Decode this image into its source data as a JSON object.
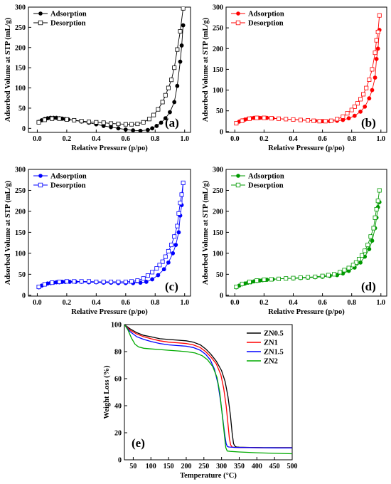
{
  "chart_data": [
    {
      "type": "line",
      "panel_label": "(a)",
      "xlabel": "Relative Pressure (p/po)",
      "ylabel": "Adsorbed Volume at STP (mL/g)",
      "xlim": [
        -0.06,
        1.04
      ],
      "ylim": [
        -10,
        300
      ],
      "xticks": [
        "0.0",
        "0.2",
        "0.4",
        "0.6",
        "0.8",
        "1.0"
      ],
      "xtick_values": [
        0,
        0.2,
        0.4,
        0.6,
        0.8,
        1.0
      ],
      "yticks": [
        "0",
        "50",
        "100",
        "150",
        "200",
        "250",
        "300"
      ],
      "ytick_values": [
        0,
        50,
        100,
        150,
        200,
        250,
        300
      ],
      "legend": [
        "Adsorption",
        "Desorption"
      ],
      "legend_position": "top-left",
      "color": "#000000",
      "series": [
        {
          "name": "Adsorption",
          "marker": "filled-circle",
          "x": [
            0.01,
            0.03,
            0.05,
            0.07,
            0.09,
            0.11,
            0.13,
            0.15,
            0.17,
            0.19,
            0.21,
            0.25,
            0.3,
            0.35,
            0.4,
            0.45,
            0.5,
            0.55,
            0.6,
            0.65,
            0.7,
            0.75,
            0.78,
            0.81,
            0.84,
            0.87,
            0.9,
            0.93,
            0.95,
            0.97,
            0.98,
            0.99
          ],
          "y": [
            16,
            20,
            23,
            25,
            26,
            26,
            26,
            25,
            24,
            23,
            22,
            20,
            17,
            14,
            10,
            6,
            3,
            0,
            -3,
            -5,
            -6,
            -4,
            0,
            6,
            14,
            25,
            40,
            65,
            105,
            165,
            205,
            255
          ]
        },
        {
          "name": "Desorption",
          "marker": "open-square",
          "x": [
            0.99,
            0.97,
            0.95,
            0.93,
            0.91,
            0.89,
            0.87,
            0.85,
            0.82,
            0.79,
            0.76,
            0.72,
            0.68,
            0.64,
            0.6,
            0.55,
            0.5,
            0.45,
            0.4,
            0.35,
            0.3,
            0.25,
            0.2,
            0.15,
            0.1,
            0.05,
            0.01
          ],
          "y": [
            297,
            240,
            195,
            150,
            120,
            100,
            82,
            65,
            47,
            33,
            23,
            15,
            11,
            10,
            10,
            11,
            12,
            14,
            15,
            16,
            18,
            20,
            22,
            24,
            24,
            21,
            15
          ]
        }
      ]
    },
    {
      "type": "line",
      "panel_label": "(b)",
      "xlabel": "Relative Pressure (p/po)",
      "ylabel": "Adsorbed Volume at STP (mL/g)",
      "xlim": [
        -0.06,
        1.04
      ],
      "ylim": [
        -2,
        300
      ],
      "xticks": [
        "0.0",
        "0.2",
        "0.4",
        "0.6",
        "0.8",
        "1.0"
      ],
      "xtick_values": [
        0,
        0.2,
        0.4,
        0.6,
        0.8,
        1.0
      ],
      "yticks": [
        "0",
        "50",
        "100",
        "150",
        "200",
        "250",
        "300"
      ],
      "ytick_values": [
        0,
        50,
        100,
        150,
        200,
        250,
        300
      ],
      "legend": [
        "Adsorption",
        "Desorption"
      ],
      "legend_position": "top-left",
      "color": "#ff0000",
      "series": [
        {
          "name": "Adsorption",
          "marker": "filled-circle",
          "x": [
            0.01,
            0.03,
            0.05,
            0.07,
            0.09,
            0.11,
            0.13,
            0.15,
            0.17,
            0.19,
            0.22,
            0.26,
            0.3,
            0.35,
            0.4,
            0.45,
            0.5,
            0.55,
            0.6,
            0.65,
            0.7,
            0.74,
            0.78,
            0.82,
            0.86,
            0.89,
            0.92,
            0.94,
            0.96,
            0.97,
            0.98,
            0.99
          ],
          "y": [
            20,
            24,
            27,
            29,
            31,
            32,
            33,
            33,
            33,
            33,
            33,
            32,
            31,
            30,
            29,
            28,
            27,
            26,
            25,
            25,
            26,
            28,
            32,
            38,
            48,
            60,
            80,
            100,
            130,
            175,
            200,
            245
          ]
        },
        {
          "name": "Desorption",
          "marker": "open-square",
          "x": [
            0.99,
            0.98,
            0.97,
            0.96,
            0.94,
            0.92,
            0.9,
            0.88,
            0.86,
            0.84,
            0.82,
            0.8,
            0.77,
            0.74,
            0.7,
            0.66,
            0.62,
            0.58,
            0.54,
            0.5,
            0.45,
            0.4,
            0.35,
            0.3,
            0.25,
            0.2,
            0.15,
            0.1,
            0.05,
            0.01
          ],
          "y": [
            280,
            240,
            220,
            190,
            150,
            125,
            105,
            90,
            78,
            68,
            60,
            52,
            44,
            36,
            30,
            26,
            25,
            25,
            26,
            27,
            28,
            29,
            30,
            31,
            32,
            33,
            33,
            31,
            26,
            20
          ]
        }
      ]
    },
    {
      "type": "line",
      "panel_label": "(c)",
      "xlabel": "Relative Pressure (p/po)",
      "ylabel": "Adsorbed Volume at STP (mL/g)",
      "xlim": [
        -0.06,
        1.04
      ],
      "ylim": [
        -2,
        300
      ],
      "xticks": [
        "0.0",
        "0.2",
        "0.4",
        "0.6",
        "0.8",
        "1.0"
      ],
      "xtick_values": [
        0,
        0.2,
        0.4,
        0.6,
        0.8,
        1.0
      ],
      "yticks": [
        "0",
        "50",
        "100",
        "150",
        "200",
        "250",
        "300"
      ],
      "ytick_values": [
        0,
        50,
        100,
        150,
        200,
        250,
        300
      ],
      "legend": [
        "Adsorption",
        "Desorption"
      ],
      "legend_position": "top-left",
      "color": "#0000ff",
      "series": [
        {
          "name": "Adsorption",
          "marker": "filled-circle",
          "x": [
            0.01,
            0.03,
            0.05,
            0.07,
            0.09,
            0.11,
            0.13,
            0.15,
            0.17,
            0.19,
            0.22,
            0.26,
            0.3,
            0.35,
            0.4,
            0.45,
            0.5,
            0.55,
            0.6,
            0.65,
            0.7,
            0.74,
            0.78,
            0.82,
            0.86,
            0.89,
            0.92,
            0.94,
            0.96,
            0.97,
            0.98,
            0.99
          ],
          "y": [
            19,
            23,
            26,
            28,
            29,
            30,
            31,
            31,
            32,
            32,
            32,
            32,
            32,
            31,
            31,
            30,
            30,
            29,
            29,
            29,
            30,
            32,
            38,
            48,
            62,
            78,
            100,
            120,
            150,
            190,
            215,
            268
          ]
        },
        {
          "name": "Desorption",
          "marker": "open-square",
          "x": [
            0.99,
            0.98,
            0.97,
            0.96,
            0.95,
            0.93,
            0.91,
            0.89,
            0.87,
            0.85,
            0.83,
            0.81,
            0.78,
            0.75,
            0.72,
            0.68,
            0.64,
            0.6,
            0.55,
            0.5,
            0.45,
            0.4,
            0.35,
            0.3,
            0.25,
            0.2,
            0.15,
            0.1,
            0.05,
            0.01
          ],
          "y": [
            268,
            240,
            220,
            195,
            165,
            140,
            120,
            105,
            92,
            80,
            72,
            64,
            55,
            47,
            40,
            35,
            33,
            32,
            32,
            32,
            32,
            32,
            33,
            33,
            33,
            33,
            32,
            30,
            26,
            20
          ]
        }
      ]
    },
    {
      "type": "line",
      "panel_label": "(d)",
      "xlabel": "Relative Pressure (p/po)",
      "ylabel": "Adsorbed Volume at STP (mL/g)",
      "xlim": [
        -0.06,
        1.04
      ],
      "ylim": [
        -2,
        300
      ],
      "xticks": [
        "0.0",
        "0.2",
        "0.4",
        "0.6",
        "0.8",
        "1.0"
      ],
      "xtick_values": [
        0,
        0.2,
        0.4,
        0.6,
        0.8,
        1.0
      ],
      "yticks": [
        "0",
        "50",
        "100",
        "150",
        "200",
        "250",
        "300"
      ],
      "ytick_values": [
        0,
        50,
        100,
        150,
        200,
        250,
        300
      ],
      "legend": [
        "Adsorption",
        "Desorption"
      ],
      "legend_position": "top-left",
      "color": "#009900",
      "series": [
        {
          "name": "Adsorption",
          "marker": "filled-circle",
          "x": [
            0.01,
            0.03,
            0.05,
            0.07,
            0.09,
            0.11,
            0.13,
            0.15,
            0.17,
            0.19,
            0.22,
            0.26,
            0.3,
            0.35,
            0.4,
            0.45,
            0.5,
            0.55,
            0.6,
            0.65,
            0.7,
            0.74,
            0.78,
            0.82,
            0.86,
            0.89,
            0.92,
            0.94,
            0.96,
            0.97,
            0.98,
            0.99
          ],
          "y": [
            19,
            23,
            26,
            28,
            30,
            31,
            33,
            34,
            35,
            36,
            37,
            38,
            39,
            40,
            40,
            41,
            42,
            43,
            44,
            46,
            48,
            52,
            58,
            66,
            78,
            92,
            110,
            130,
            160,
            185,
            210,
            222
          ]
        },
        {
          "name": "Desorption",
          "marker": "open-square",
          "x": [
            0.99,
            0.98,
            0.97,
            0.96,
            0.95,
            0.93,
            0.91,
            0.89,
            0.87,
            0.85,
            0.83,
            0.81,
            0.78,
            0.75,
            0.72,
            0.68,
            0.64,
            0.6,
            0.55,
            0.5,
            0.45,
            0.4,
            0.35,
            0.3,
            0.25,
            0.2,
            0.15,
            0.1,
            0.05,
            0.01
          ],
          "y": [
            250,
            225,
            205,
            185,
            160,
            140,
            120,
            106,
            95,
            86,
            78,
            72,
            65,
            60,
            55,
            50,
            48,
            46,
            44,
            43,
            42,
            41,
            40,
            39,
            38,
            37,
            35,
            32,
            27,
            20
          ]
        }
      ]
    },
    {
      "type": "line",
      "panel_label": "(e)",
      "xlabel": "Temperature (°C)",
      "ylabel": "Weight Loss (%)",
      "xlim": [
        25,
        500
      ],
      "ylim": [
        0,
        100
      ],
      "xticks": [
        "50",
        "100",
        "150",
        "200",
        "250",
        "300",
        "350",
        "400",
        "450",
        "500"
      ],
      "xtick_values": [
        50,
        100,
        150,
        200,
        250,
        300,
        350,
        400,
        450,
        500
      ],
      "yticks": [
        "0",
        "20",
        "40",
        "60",
        "80",
        "100"
      ],
      "ytick_values": [
        0,
        20,
        40,
        60,
        80,
        100
      ],
      "legend": [
        "ZN0.5",
        "ZN1",
        "ZN1.5",
        "ZN2"
      ],
      "legend_position": "top-right",
      "series": [
        {
          "name": "ZN0.5",
          "color": "#000000",
          "x": [
            25,
            40,
            60,
            80,
            100,
            125,
            150,
            175,
            200,
            220,
            240,
            255,
            270,
            285,
            300,
            310,
            318,
            325,
            330,
            334,
            338,
            342,
            350,
            380,
            420,
            460,
            500
          ],
          "y": [
            100,
            97,
            94,
            92,
            91,
            89.5,
            89,
            88.5,
            88,
            87,
            85,
            82,
            78,
            73,
            66,
            58,
            47,
            33,
            20,
            12,
            10,
            9.5,
            9.3,
            9.1,
            9,
            9,
            9
          ]
        },
        {
          "name": "ZN1",
          "color": "#ff0000",
          "x": [
            25,
            40,
            60,
            80,
            100,
            125,
            150,
            175,
            200,
            220,
            240,
            255,
            270,
            285,
            298,
            306,
            313,
            318,
            322,
            326,
            330,
            335,
            350,
            380,
            420,
            460,
            500
          ],
          "y": [
            100,
            96,
            93,
            91,
            89.5,
            88,
            87,
            86.5,
            86,
            85,
            83,
            80,
            76,
            71,
            63,
            53,
            40,
            27,
            16,
            11,
            9.5,
            9.2,
            9,
            9,
            8.9,
            8.9,
            8.9
          ]
        },
        {
          "name": "ZN1.5",
          "color": "#0000ff",
          "x": [
            25,
            40,
            60,
            80,
            100,
            125,
            150,
            175,
            200,
            220,
            240,
            255,
            268,
            280,
            290,
            297,
            302,
            306,
            310,
            313,
            316,
            320,
            335,
            380,
            420,
            460,
            500
          ],
          "y": [
            100,
            95,
            91,
            89,
            87.5,
            86,
            85,
            84.5,
            84,
            83,
            81,
            78,
            74,
            67,
            56,
            44,
            34,
            25,
            17,
            12,
            10,
            9.5,
            9.2,
            9,
            8.9,
            8.8,
            8.8
          ]
        },
        {
          "name": "ZN2",
          "color": "#00aa00",
          "x": [
            25,
            35,
            45,
            55,
            65,
            80,
            100,
            125,
            150,
            175,
            200,
            225,
            245,
            260,
            275,
            287,
            295,
            300,
            305,
            309,
            312,
            316,
            325,
            350,
            400,
            450,
            500
          ],
          "y": [
            100,
            96,
            90,
            85.5,
            83.5,
            82.5,
            82,
            81.5,
            81,
            80.5,
            80,
            79,
            77,
            74,
            69,
            61,
            50,
            38,
            26,
            16,
            9,
            6.5,
            6.2,
            5.8,
            5.2,
            4.8,
            4.5
          ]
        }
      ]
    }
  ]
}
